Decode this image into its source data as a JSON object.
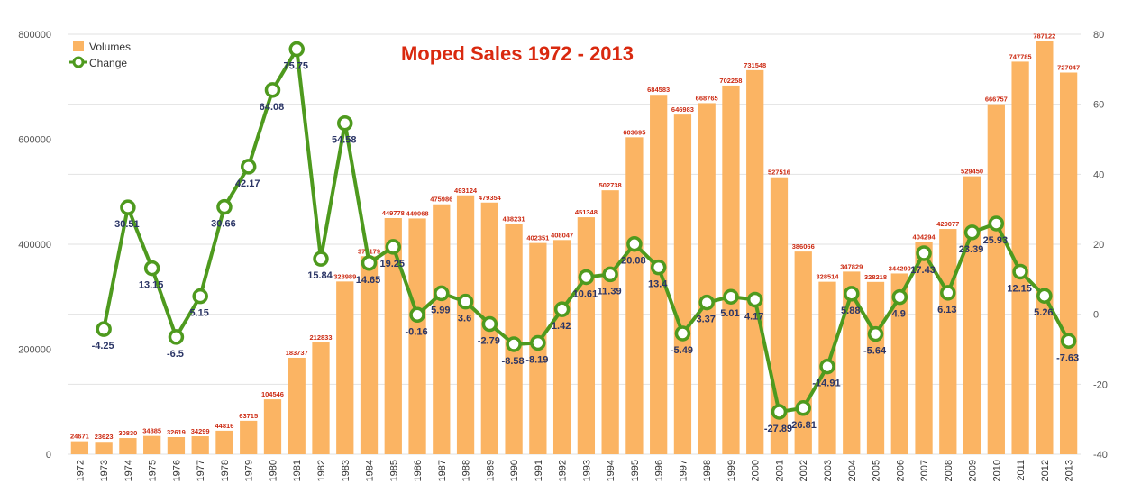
{
  "chart_data": {
    "type": "bar",
    "title": "Moped Sales 1972 - 2013",
    "categories": [
      "1972",
      "1973",
      "1974",
      "1975",
      "1976",
      "1977",
      "1978",
      "1979",
      "1980",
      "1981",
      "1982",
      "1983",
      "1984",
      "1985",
      "1986",
      "1987",
      "1988",
      "1989",
      "1990",
      "1991",
      "1992",
      "1993",
      "1994",
      "1995",
      "1996",
      "1997",
      "1998",
      "1999",
      "2000",
      "2001",
      "2002",
      "2003",
      "2004",
      "2005",
      "2006",
      "2007",
      "2008",
      "2009",
      "2010",
      "2011",
      "2012",
      "2013"
    ],
    "series": [
      {
        "name": "Volumes",
        "type": "bar",
        "axis": "left",
        "color": "#fbb463",
        "values": [
          24671,
          23623,
          30830,
          34885,
          32619,
          34299,
          44816,
          63715,
          104546,
          183737,
          212833,
          328989,
          377179,
          449778,
          449068,
          475986,
          493124,
          479354,
          438231,
          402351,
          408047,
          451348,
          502738,
          603695,
          684583,
          646983,
          668765,
          702258,
          731548,
          527516,
          386066,
          328514,
          347829,
          328218,
          344290,
          404294,
          429077,
          529450,
          666757,
          747785,
          787122,
          727047
        ]
      },
      {
        "name": "Change",
        "type": "line",
        "axis": "right",
        "color": "#4e9a1e",
        "values": [
          null,
          -4.25,
          30.51,
          13.15,
          -6.5,
          5.15,
          30.66,
          42.17,
          64.08,
          75.75,
          15.84,
          54.58,
          14.65,
          19.25,
          -0.16,
          5.99,
          3.6,
          -2.79,
          -8.58,
          -8.19,
          1.42,
          10.61,
          11.39,
          20.08,
          13.4,
          -5.49,
          3.37,
          5.01,
          4.17,
          -27.89,
          -26.81,
          -14.91,
          5.88,
          -5.64,
          4.9,
          17.43,
          6.13,
          23.39,
          25.93,
          12.15,
          5.26,
          -7.63
        ]
      }
    ],
    "bar_labels": [
      "24671",
      "23623",
      "30830",
      "34885",
      "32619",
      "34299",
      "44816",
      "63715",
      "104546",
      "183737",
      "212833",
      "328989",
      "377179",
      "449778",
      "449068",
      "475986",
      "493124",
      "479354",
      "438231",
      "402351",
      "408047",
      "451348",
      "502738",
      "603695",
      "684583",
      "646983",
      "668765",
      "702258",
      "731548",
      "527516",
      "386066",
      "328514",
      "347829",
      "328218",
      "344290",
      "404294",
      "429077",
      "529450",
      "666757",
      "747785",
      "787122",
      "727047"
    ],
    "change_labels": [
      "",
      "-4.25",
      "30.51",
      "13.15",
      "-6.5",
      "5.15",
      "30.66",
      "42.17",
      "64.08",
      "75.75",
      "15.84",
      "54.58",
      "14.65",
      "19.25",
      "-0.16",
      "5.99",
      "3.6",
      "-2.79",
      "-8.58",
      "-8.19",
      "1.42",
      "10.61",
      "11.39",
      "20.08",
      "13.4",
      "-5.49",
      "3.37",
      "5.01",
      "4.17",
      "-27.89",
      "-26.81",
      "-14.91",
      "5.88",
      "-5.64",
      "4.9",
      "17.43",
      "6.13",
      "23.39",
      "25.93",
      "12.15",
      "5.26",
      "-7.63"
    ],
    "ylim": [
      0,
      800000
    ],
    "y_ticks": [
      "0",
      "200000",
      "400000",
      "600000",
      "800000"
    ],
    "y2lim": [
      -40,
      80
    ],
    "y2_ticks": [
      "-40",
      "-20",
      "0",
      "20",
      "40",
      "60",
      "80"
    ],
    "xlabel": "",
    "ylabel": "",
    "grid": true,
    "legend_position": "top-left"
  }
}
